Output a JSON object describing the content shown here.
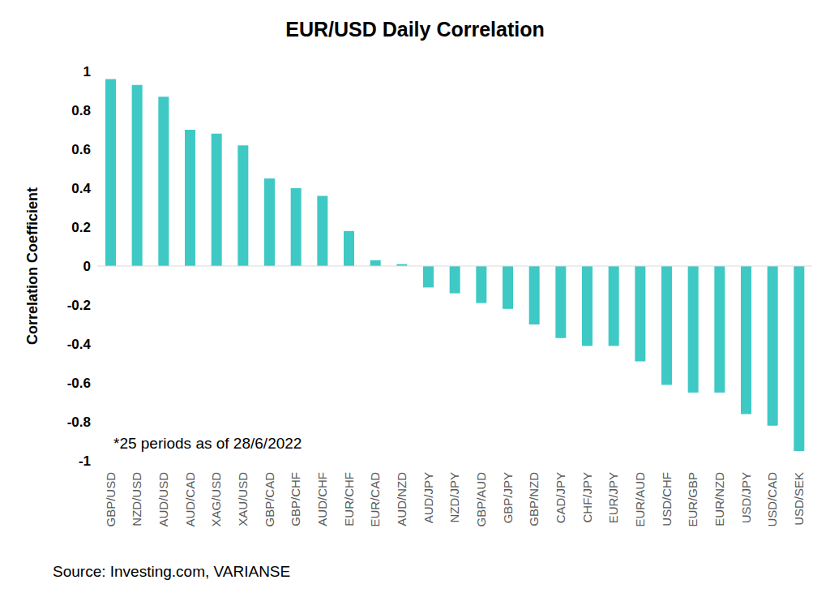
{
  "chart_data": {
    "type": "bar",
    "title": "EUR/USD Daily Correlation",
    "y_label": "Correlation Coefficient",
    "annotation": "*25 periods as of 28/6/2022",
    "source": "Source: Investing.com, VARIANSE",
    "categories": [
      "GBP/USD",
      "NZD/USD",
      "AUD/USD",
      "AUD/CAD",
      "XAG/USD",
      "XAU/USD",
      "GBP/CAD",
      "GBP/CHF",
      "AUD/CHF",
      "EUR/CHF",
      "EUR/CAD",
      "AUD/NZD",
      "AUD/JPY",
      "NZD/JPY",
      "GBP/AUD",
      "GBP/JPY",
      "GBP/NZD",
      "CAD/JPY",
      "CHF/JPY",
      "EUR/JPY",
      "EUR/AUD",
      "USD/CHF",
      "EUR/GBP",
      "EUR/NZD",
      "USD/JPY",
      "USD/CAD",
      "USD/SEK"
    ],
    "values": [
      0.96,
      0.93,
      0.87,
      0.7,
      0.68,
      0.62,
      0.45,
      0.4,
      0.36,
      0.18,
      0.03,
      0.01,
      -0.11,
      -0.14,
      -0.19,
      -0.22,
      -0.3,
      -0.37,
      -0.41,
      -0.41,
      -0.49,
      -0.61,
      -0.65,
      -0.65,
      -0.76,
      -0.82,
      -0.95
    ],
    "color": "#3ec9c5",
    "ylim": [
      -1,
      1
    ],
    "yticks": [
      -1,
      -0.8,
      -0.6,
      -0.4,
      -0.2,
      0,
      0.2,
      0.4,
      0.6,
      0.8,
      1
    ],
    "grid": false
  }
}
